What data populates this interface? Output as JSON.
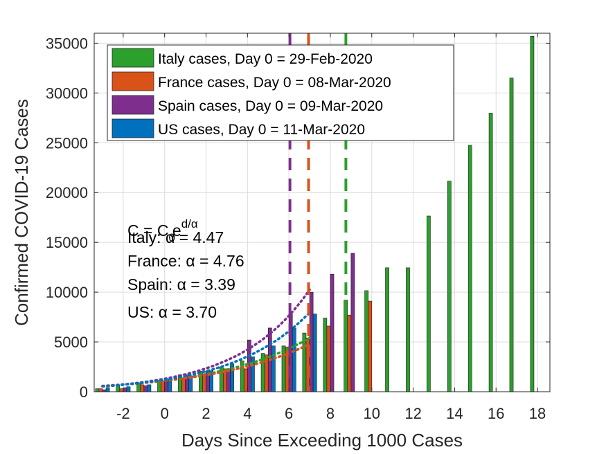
{
  "chart_data": {
    "type": "bar",
    "xlabel": "Days Since Exceeding 1000 Cases",
    "ylabel": "Confirmed COVID-19 Cases",
    "xlim": [
      -3.4,
      18.6
    ],
    "ylim": [
      0,
      36000
    ],
    "xticks": [
      "-2",
      "0",
      "2",
      "4",
      "6",
      "8",
      "10",
      "12",
      "14",
      "16",
      "18"
    ],
    "yticks": [
      "0",
      "5000",
      "10000",
      "15000",
      "20000",
      "25000",
      "30000",
      "35000"
    ],
    "grid": true,
    "legend_position": "top-left",
    "series": [
      {
        "name": "Italy cases, Day 0 = 29-Feb-2020",
        "color": "#2ca02c",
        "x": [
          -3,
          -2,
          -1,
          0,
          1,
          2,
          3,
          4,
          5,
          6,
          7,
          8,
          9,
          10,
          11,
          12,
          13,
          14,
          15,
          16,
          17,
          18
        ],
        "values": [
          300,
          650,
          900,
          1130,
          1700,
          2050,
          2500,
          3100,
          3850,
          4600,
          5900,
          7400,
          9200,
          10150,
          12450,
          12450,
          17650,
          21150,
          24750,
          27980,
          31500,
          35700
        ],
        "alpha_label": "Italy: α = 4.47",
        "day0_x": 8.75
      },
      {
        "name": "France cases, Day 0 = 08-Mar-2020",
        "color": "#d95319",
        "x": [
          -3,
          -2,
          -1,
          0,
          1,
          2,
          3,
          4,
          5,
          6,
          7,
          8,
          9,
          10
        ],
        "values": [
          300,
          300,
          700,
          1100,
          1400,
          1800,
          2300,
          2300,
          3700,
          4500,
          5400,
          6600,
          7700,
          9100
        ],
        "alpha_label": "France: α = 4.76",
        "day0_x": 6.95
      },
      {
        "name": "Spain cases, Day 0 = 09-Mar-2020",
        "color": "#7e2f8e",
        "x": [
          -3,
          -2,
          -1,
          0,
          1,
          2,
          3,
          4,
          5,
          6,
          7,
          8,
          9
        ],
        "values": [
          200,
          400,
          600,
          1000,
          1700,
          2100,
          2300,
          5200,
          6400,
          7800,
          10000,
          11800,
          13900
        ],
        "alpha_label": "Spain: α = 3.39",
        "day0_x": 6.05
      },
      {
        "name": "US cases, Day 0 = 11-Mar-2020",
        "color": "#0072bd",
        "x": [
          -3,
          -2,
          -1,
          0,
          1,
          2,
          3,
          4,
          5,
          6,
          7
        ],
        "values": [
          400,
          500,
          700,
          1300,
          1600,
          2100,
          2800,
          3500,
          4600,
          6400,
          7800
        ],
        "alpha_label": "US: α = 3.70",
        "day0_x": null
      }
    ],
    "fits": [
      {
        "series": "Italy",
        "color": "#2ca02c",
        "c0": 1130,
        "alpha": 4.47,
        "x_from": -3,
        "x_to": 7
      },
      {
        "series": "France",
        "color": "#d95319",
        "c0": 1100,
        "alpha": 4.76,
        "x_from": -3,
        "x_to": 7
      },
      {
        "series": "Spain",
        "color": "#7e2f8e",
        "c0": 1300,
        "alpha": 3.39,
        "x_from": -3,
        "x_to": 7
      },
      {
        "series": "US",
        "color": "#0072bd",
        "c0": 1200,
        "alpha": 3.7,
        "x_from": -3,
        "x_to": 7
      }
    ],
    "formula": {
      "base": "C = C",
      "sub": "0",
      "exp_base": "e",
      "exp": "d/α"
    }
  }
}
